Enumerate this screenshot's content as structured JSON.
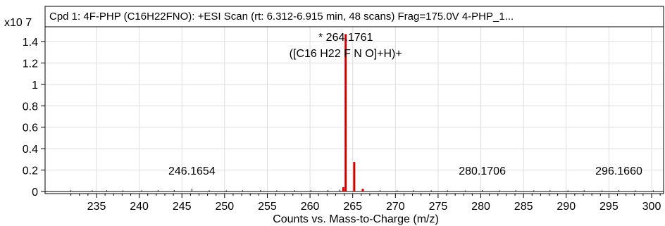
{
  "chart_data": {
    "type": "bar",
    "title": "Cpd 1: 4F-PHP (C16H22FNO): +ESI Scan (rt: 6.312-6.915 min, 48 scans) Frag=175.0V 4-PHP_1...",
    "xlabel": "Counts vs. Mass-to-Charge (m/z)",
    "y_scale_label": "x10 7",
    "xlim": [
      231,
      301
    ],
    "ylim": [
      0,
      1.55
    ],
    "x_ticks": [
      "235",
      "240",
      "245",
      "250",
      "255",
      "260",
      "265",
      "270",
      "275",
      "280",
      "285",
      "290",
      "295",
      "300"
    ],
    "y_ticks": [
      "0",
      "0.2",
      "0.4",
      "0.6",
      "0.8",
      "1",
      "1.2",
      "1.4"
    ],
    "grid": true,
    "peaks_highlighted": [
      {
        "x": 264.1761,
        "y": 1.47
      },
      {
        "x": 265.18,
        "y": 0.275
      },
      {
        "x": 266.18,
        "y": 0.025
      },
      {
        "x": 263.9,
        "y": 0.04
      }
    ],
    "peaks_minor": [
      {
        "x": 246.1654,
        "y": 0.02
      },
      {
        "x": 280.1706,
        "y": 0.006
      },
      {
        "x": 296.166,
        "y": 0.006
      },
      {
        "x": 232.0,
        "y": 0.005
      },
      {
        "x": 234.5,
        "y": 0.004
      },
      {
        "x": 236.2,
        "y": 0.005
      },
      {
        "x": 238.1,
        "y": 0.004
      },
      {
        "x": 240.3,
        "y": 0.005
      },
      {
        "x": 242.2,
        "y": 0.006
      },
      {
        "x": 244.1,
        "y": 0.006
      },
      {
        "x": 248.2,
        "y": 0.005
      },
      {
        "x": 250.2,
        "y": 0.004
      },
      {
        "x": 252.1,
        "y": 0.005
      },
      {
        "x": 254.2,
        "y": 0.006
      },
      {
        "x": 256.1,
        "y": 0.004
      },
      {
        "x": 258.2,
        "y": 0.005
      },
      {
        "x": 260.1,
        "y": 0.006
      },
      {
        "x": 262.1,
        "y": 0.007
      },
      {
        "x": 263.5,
        "y": 0.01
      },
      {
        "x": 268.2,
        "y": 0.005
      },
      {
        "x": 270.2,
        "y": 0.004
      },
      {
        "x": 272.1,
        "y": 0.005
      },
      {
        "x": 274.2,
        "y": 0.004
      },
      {
        "x": 276.1,
        "y": 0.005
      },
      {
        "x": 278.2,
        "y": 0.004
      },
      {
        "x": 282.2,
        "y": 0.004
      },
      {
        "x": 284.1,
        "y": 0.005
      },
      {
        "x": 286.2,
        "y": 0.004
      },
      {
        "x": 288.1,
        "y": 0.005
      },
      {
        "x": 290.2,
        "y": 0.004
      },
      {
        "x": 292.1,
        "y": 0.005
      },
      {
        "x": 294.2,
        "y": 0.004
      },
      {
        "x": 298.1,
        "y": 0.004
      },
      {
        "x": 300.2,
        "y": 0.004
      }
    ],
    "annotations": [
      {
        "x": 264.1761,
        "y": 1.47,
        "text": "* 264.1761",
        "sub": "([C16 H22 F N O]+H)+"
      },
      {
        "x": 246.1654,
        "y": 0.02,
        "text": "246.1654"
      },
      {
        "x": 280.1706,
        "y": 0.006,
        "text": "280.1706"
      },
      {
        "x": 296.166,
        "y": 0.006,
        "text": "296.1660"
      }
    ],
    "colors": {
      "highlight_peak": "#cc0000",
      "minor_peak": "#000000",
      "grid": "#dddddd",
      "frame": "#000000"
    }
  }
}
